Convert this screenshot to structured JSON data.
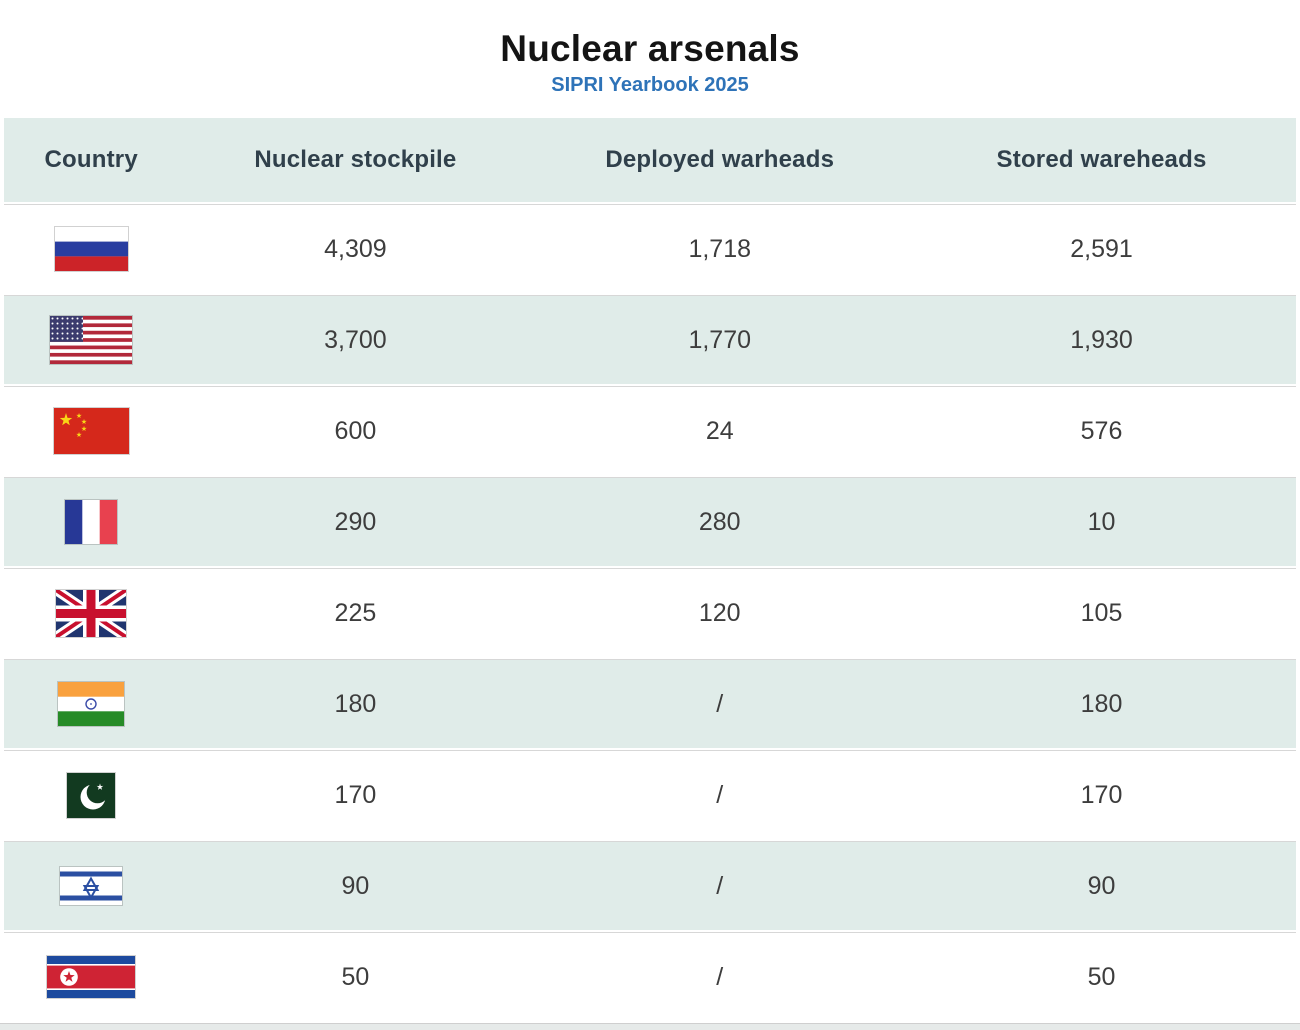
{
  "header": {
    "title": "Nuclear arsenals",
    "subtitle": "SIPRI Yearbook 2025"
  },
  "table": {
    "columns": [
      "Country",
      "Nuclear stockpile",
      "Deployed warheads",
      "Stored wareheads"
    ],
    "rows": [
      {
        "country": "Russia",
        "flag_icon": "russia-flag-icon",
        "stockpile": "4,309",
        "deployed": "1,718",
        "stored": "2,591"
      },
      {
        "country": "United States",
        "flag_icon": "usa-flag-icon",
        "stockpile": "3,700",
        "deployed": "1,770",
        "stored": "1,930"
      },
      {
        "country": "China",
        "flag_icon": "china-flag-icon",
        "stockpile": "600",
        "deployed": "24",
        "stored": "576"
      },
      {
        "country": "France",
        "flag_icon": "france-flag-icon",
        "stockpile": "290",
        "deployed": "280",
        "stored": "10"
      },
      {
        "country": "United Kingdom",
        "flag_icon": "uk-flag-icon",
        "stockpile": "225",
        "deployed": "120",
        "stored": "105"
      },
      {
        "country": "India",
        "flag_icon": "india-flag-icon",
        "stockpile": "180",
        "deployed": "/",
        "stored": "180"
      },
      {
        "country": "Pakistan",
        "flag_icon": "pakistan-flag-icon",
        "stockpile": "170",
        "deployed": "/",
        "stored": "170"
      },
      {
        "country": "Israel",
        "flag_icon": "israel-flag-icon",
        "stockpile": "90",
        "deployed": "/",
        "stored": "90"
      },
      {
        "country": "North Korea",
        "flag_icon": "north-korea-flag-icon",
        "stockpile": "50",
        "deployed": "/",
        "stored": "50"
      }
    ]
  },
  "chart_data": {
    "type": "table",
    "title": "Nuclear arsenals",
    "subtitle": "SIPRI Yearbook 2025",
    "columns": [
      "Country",
      "Nuclear stockpile",
      "Deployed warheads",
      "Stored wareheads"
    ],
    "rows": [
      {
        "country": "Russia",
        "nuclear_stockpile": 4309,
        "deployed_warheads": 1718,
        "stored_wareheads": 2591
      },
      {
        "country": "United States",
        "nuclear_stockpile": 3700,
        "deployed_warheads": 1770,
        "stored_wareheads": 1930
      },
      {
        "country": "China",
        "nuclear_stockpile": 600,
        "deployed_warheads": 24,
        "stored_wareheads": 576
      },
      {
        "country": "France",
        "nuclear_stockpile": 290,
        "deployed_warheads": 280,
        "stored_wareheads": 10
      },
      {
        "country": "United Kingdom",
        "nuclear_stockpile": 225,
        "deployed_warheads": 120,
        "stored_wareheads": 105
      },
      {
        "country": "India",
        "nuclear_stockpile": 180,
        "deployed_warheads": "/",
        "stored_wareheads": 180
      },
      {
        "country": "Pakistan",
        "nuclear_stockpile": 170,
        "deployed_warheads": "/",
        "stored_wareheads": 170
      },
      {
        "country": "Israel",
        "nuclear_stockpile": 90,
        "deployed_warheads": "/",
        "stored_wareheads": 90
      },
      {
        "country": "North Korea",
        "nuclear_stockpile": 50,
        "deployed_warheads": "/",
        "stored_wareheads": 50
      }
    ]
  },
  "colors": {
    "row_alt_teal": "#e0ece9",
    "subtitle_blue": "#2e73b8",
    "header_text": "#30404b",
    "value_text": "#3d3d3d",
    "separator": "#d7d7d7"
  }
}
